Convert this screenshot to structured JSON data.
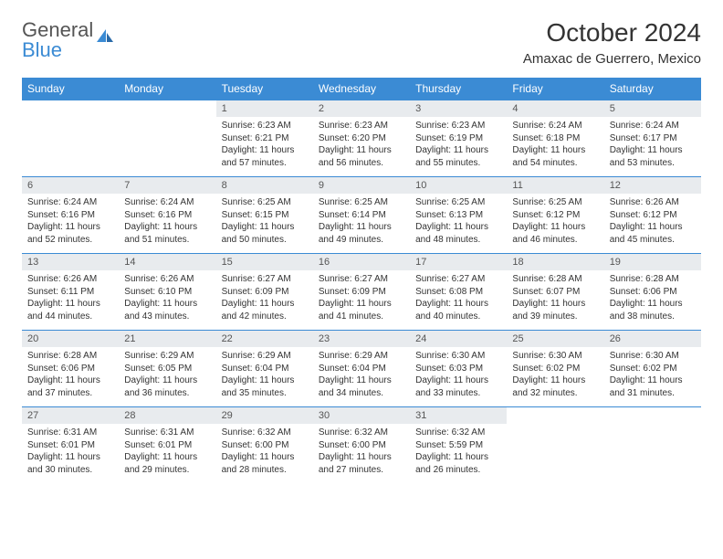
{
  "brand": {
    "part1": "General",
    "part2": "Blue"
  },
  "title": "October 2024",
  "location": "Amaxac de Guerrero, Mexico",
  "colors": {
    "header_bg": "#3b8bd4",
    "header_text": "#ffffff",
    "daynum_bg": "#e8ebee",
    "border": "#3b8bd4",
    "text": "#333333"
  },
  "weekdays": [
    "Sunday",
    "Monday",
    "Tuesday",
    "Wednesday",
    "Thursday",
    "Friday",
    "Saturday"
  ],
  "weeks": [
    [
      {
        "n": "",
        "l1": "",
        "l2": "",
        "l3": "",
        "l4": "",
        "empty": true
      },
      {
        "n": "",
        "l1": "",
        "l2": "",
        "l3": "",
        "l4": "",
        "empty": true
      },
      {
        "n": "1",
        "l1": "Sunrise: 6:23 AM",
        "l2": "Sunset: 6:21 PM",
        "l3": "Daylight: 11 hours",
        "l4": "and 57 minutes."
      },
      {
        "n": "2",
        "l1": "Sunrise: 6:23 AM",
        "l2": "Sunset: 6:20 PM",
        "l3": "Daylight: 11 hours",
        "l4": "and 56 minutes."
      },
      {
        "n": "3",
        "l1": "Sunrise: 6:23 AM",
        "l2": "Sunset: 6:19 PM",
        "l3": "Daylight: 11 hours",
        "l4": "and 55 minutes."
      },
      {
        "n": "4",
        "l1": "Sunrise: 6:24 AM",
        "l2": "Sunset: 6:18 PM",
        "l3": "Daylight: 11 hours",
        "l4": "and 54 minutes."
      },
      {
        "n": "5",
        "l1": "Sunrise: 6:24 AM",
        "l2": "Sunset: 6:17 PM",
        "l3": "Daylight: 11 hours",
        "l4": "and 53 minutes."
      }
    ],
    [
      {
        "n": "6",
        "l1": "Sunrise: 6:24 AM",
        "l2": "Sunset: 6:16 PM",
        "l3": "Daylight: 11 hours",
        "l4": "and 52 minutes."
      },
      {
        "n": "7",
        "l1": "Sunrise: 6:24 AM",
        "l2": "Sunset: 6:16 PM",
        "l3": "Daylight: 11 hours",
        "l4": "and 51 minutes."
      },
      {
        "n": "8",
        "l1": "Sunrise: 6:25 AM",
        "l2": "Sunset: 6:15 PM",
        "l3": "Daylight: 11 hours",
        "l4": "and 50 minutes."
      },
      {
        "n": "9",
        "l1": "Sunrise: 6:25 AM",
        "l2": "Sunset: 6:14 PM",
        "l3": "Daylight: 11 hours",
        "l4": "and 49 minutes."
      },
      {
        "n": "10",
        "l1": "Sunrise: 6:25 AM",
        "l2": "Sunset: 6:13 PM",
        "l3": "Daylight: 11 hours",
        "l4": "and 48 minutes."
      },
      {
        "n": "11",
        "l1": "Sunrise: 6:25 AM",
        "l2": "Sunset: 6:12 PM",
        "l3": "Daylight: 11 hours",
        "l4": "and 46 minutes."
      },
      {
        "n": "12",
        "l1": "Sunrise: 6:26 AM",
        "l2": "Sunset: 6:12 PM",
        "l3": "Daylight: 11 hours",
        "l4": "and 45 minutes."
      }
    ],
    [
      {
        "n": "13",
        "l1": "Sunrise: 6:26 AM",
        "l2": "Sunset: 6:11 PM",
        "l3": "Daylight: 11 hours",
        "l4": "and 44 minutes."
      },
      {
        "n": "14",
        "l1": "Sunrise: 6:26 AM",
        "l2": "Sunset: 6:10 PM",
        "l3": "Daylight: 11 hours",
        "l4": "and 43 minutes."
      },
      {
        "n": "15",
        "l1": "Sunrise: 6:27 AM",
        "l2": "Sunset: 6:09 PM",
        "l3": "Daylight: 11 hours",
        "l4": "and 42 minutes."
      },
      {
        "n": "16",
        "l1": "Sunrise: 6:27 AM",
        "l2": "Sunset: 6:09 PM",
        "l3": "Daylight: 11 hours",
        "l4": "and 41 minutes."
      },
      {
        "n": "17",
        "l1": "Sunrise: 6:27 AM",
        "l2": "Sunset: 6:08 PM",
        "l3": "Daylight: 11 hours",
        "l4": "and 40 minutes."
      },
      {
        "n": "18",
        "l1": "Sunrise: 6:28 AM",
        "l2": "Sunset: 6:07 PM",
        "l3": "Daylight: 11 hours",
        "l4": "and 39 minutes."
      },
      {
        "n": "19",
        "l1": "Sunrise: 6:28 AM",
        "l2": "Sunset: 6:06 PM",
        "l3": "Daylight: 11 hours",
        "l4": "and 38 minutes."
      }
    ],
    [
      {
        "n": "20",
        "l1": "Sunrise: 6:28 AM",
        "l2": "Sunset: 6:06 PM",
        "l3": "Daylight: 11 hours",
        "l4": "and 37 minutes."
      },
      {
        "n": "21",
        "l1": "Sunrise: 6:29 AM",
        "l2": "Sunset: 6:05 PM",
        "l3": "Daylight: 11 hours",
        "l4": "and 36 minutes."
      },
      {
        "n": "22",
        "l1": "Sunrise: 6:29 AM",
        "l2": "Sunset: 6:04 PM",
        "l3": "Daylight: 11 hours",
        "l4": "and 35 minutes."
      },
      {
        "n": "23",
        "l1": "Sunrise: 6:29 AM",
        "l2": "Sunset: 6:04 PM",
        "l3": "Daylight: 11 hours",
        "l4": "and 34 minutes."
      },
      {
        "n": "24",
        "l1": "Sunrise: 6:30 AM",
        "l2": "Sunset: 6:03 PM",
        "l3": "Daylight: 11 hours",
        "l4": "and 33 minutes."
      },
      {
        "n": "25",
        "l1": "Sunrise: 6:30 AM",
        "l2": "Sunset: 6:02 PM",
        "l3": "Daylight: 11 hours",
        "l4": "and 32 minutes."
      },
      {
        "n": "26",
        "l1": "Sunrise: 6:30 AM",
        "l2": "Sunset: 6:02 PM",
        "l3": "Daylight: 11 hours",
        "l4": "and 31 minutes."
      }
    ],
    [
      {
        "n": "27",
        "l1": "Sunrise: 6:31 AM",
        "l2": "Sunset: 6:01 PM",
        "l3": "Daylight: 11 hours",
        "l4": "and 30 minutes."
      },
      {
        "n": "28",
        "l1": "Sunrise: 6:31 AM",
        "l2": "Sunset: 6:01 PM",
        "l3": "Daylight: 11 hours",
        "l4": "and 29 minutes."
      },
      {
        "n": "29",
        "l1": "Sunrise: 6:32 AM",
        "l2": "Sunset: 6:00 PM",
        "l3": "Daylight: 11 hours",
        "l4": "and 28 minutes."
      },
      {
        "n": "30",
        "l1": "Sunrise: 6:32 AM",
        "l2": "Sunset: 6:00 PM",
        "l3": "Daylight: 11 hours",
        "l4": "and 27 minutes."
      },
      {
        "n": "31",
        "l1": "Sunrise: 6:32 AM",
        "l2": "Sunset: 5:59 PM",
        "l3": "Daylight: 11 hours",
        "l4": "and 26 minutes."
      },
      {
        "n": "",
        "l1": "",
        "l2": "",
        "l3": "",
        "l4": "",
        "empty": true
      },
      {
        "n": "",
        "l1": "",
        "l2": "",
        "l3": "",
        "l4": "",
        "empty": true
      }
    ]
  ]
}
